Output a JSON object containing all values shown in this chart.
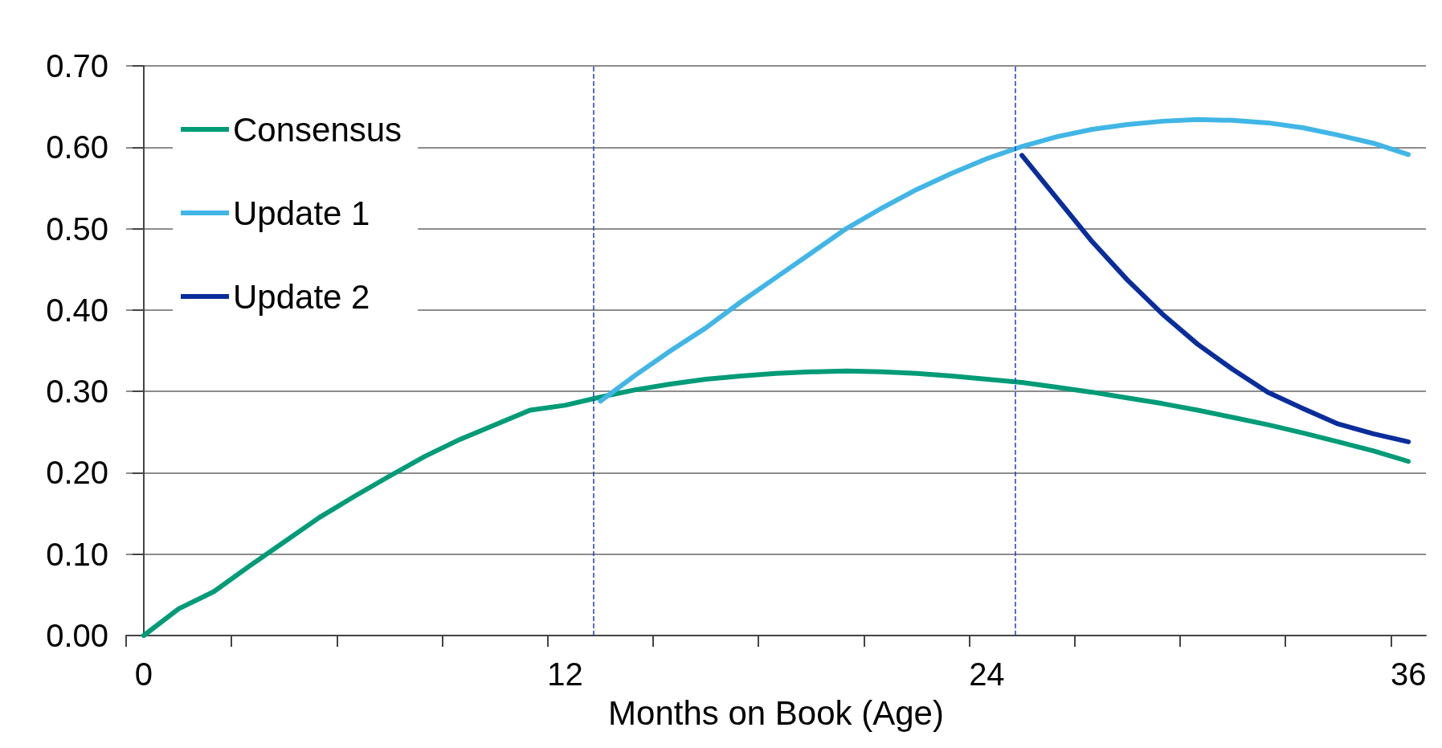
{
  "chart_data": {
    "type": "line",
    "xlabel": "Months on Book (Age)",
    "x": [
      0,
      1,
      2,
      3,
      4,
      5,
      6,
      7,
      8,
      9,
      10,
      11,
      12,
      13,
      14,
      15,
      16,
      17,
      18,
      19,
      20,
      21,
      22,
      23,
      24,
      25,
      26,
      27,
      28,
      29,
      30,
      31,
      32,
      33,
      34,
      35,
      36
    ],
    "series": [
      {
        "name": "Consensus",
        "color": "#009b77",
        "values": [
          0,
          0.033,
          0.054,
          0.085,
          0.115,
          0.145,
          0.171,
          0.196,
          0.22,
          0.241,
          0.259,
          0.277,
          0.283,
          0.293,
          0.302,
          0.309,
          0.315,
          0.319,
          0.322,
          0.324,
          0.325,
          0.324,
          0.322,
          0.319,
          0.315,
          0.311,
          0.305,
          0.299,
          0.292,
          0.285,
          0.277,
          0.268,
          0.259,
          0.249,
          0.238,
          0.227,
          0.214
        ]
      },
      {
        "name": "Update 1",
        "color": "#41b6e6",
        "x": [
          13,
          14,
          15,
          16,
          17,
          18,
          19,
          20,
          21,
          22,
          23,
          24,
          25,
          26,
          27,
          28,
          29,
          30,
          31,
          32,
          33,
          34,
          35,
          36
        ],
        "values": [
          0.288,
          0.32,
          0.35,
          0.378,
          0.41,
          0.44,
          0.47,
          0.5,
          0.525,
          0.548,
          0.568,
          0.586,
          0.601,
          0.613,
          0.622,
          0.628,
          0.632,
          0.634,
          0.633,
          0.63,
          0.624,
          0.615,
          0.605,
          0.591
        ]
      },
      {
        "name": "Update 2",
        "color": "#0a2d9c",
        "x": [
          25,
          26,
          27,
          28,
          29,
          30,
          31,
          32,
          33,
          34,
          35,
          36
        ],
        "values": [
          0.59,
          0.537,
          0.484,
          0.437,
          0.395,
          0.358,
          0.327,
          0.299,
          0.279,
          0.26,
          0.248,
          0.238
        ]
      }
    ],
    "xlim": [
      -0.5,
      36.5
    ],
    "xticks": [
      {
        "value": -0.5,
        "label": null
      },
      {
        "value": 0,
        "label": "0"
      },
      {
        "value": 2.5,
        "label": null
      },
      {
        "value": 5.5,
        "label": null
      },
      {
        "value": 8.5,
        "label": null
      },
      {
        "value": 11.5,
        "label": null
      },
      {
        "value": 12,
        "label": "12"
      },
      {
        "value": 14.5,
        "label": null
      },
      {
        "value": 17.5,
        "label": null
      },
      {
        "value": 20.5,
        "label": null
      },
      {
        "value": 23.5,
        "label": null
      },
      {
        "value": 24,
        "label": "24"
      },
      {
        "value": 26.5,
        "label": null
      },
      {
        "value": 29.5,
        "label": null
      },
      {
        "value": 32.5,
        "label": null
      },
      {
        "value": 35.5,
        "label": null
      },
      {
        "value": 36,
        "label": "36"
      }
    ],
    "ylim": [
      0,
      0.7
    ],
    "yticks": [
      {
        "value": 0,
        "label": "0.00"
      },
      {
        "value": 0.1,
        "label": "0.10"
      },
      {
        "value": 0.2,
        "label": "0.20"
      },
      {
        "value": 0.3,
        "label": "0.30"
      },
      {
        "value": 0.4,
        "label": "0.40"
      },
      {
        "value": 0.5,
        "label": "0.50"
      },
      {
        "value": 0.6,
        "label": "0.60"
      },
      {
        "value": 0.7,
        "label": "0.70"
      }
    ],
    "ref_lines": [
      {
        "axis": "x",
        "value": 12.8,
        "color": "#1f3fbf",
        "line_style": "dashed"
      },
      {
        "axis": "x",
        "value": 24.8,
        "color": "#1f3fbf",
        "line_style": "dashed"
      }
    ],
    "grid": "y",
    "legend": "top left",
    "marker": "none",
    "line_style": "solid"
  }
}
